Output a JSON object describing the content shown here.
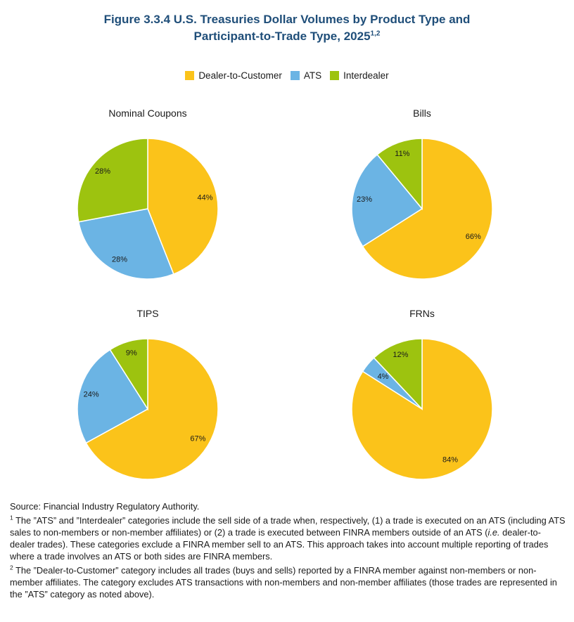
{
  "title": {
    "line1": "Figure 3.3.4 U.S. Treasuries Dollar Volumes by Product Type and",
    "line2": "Participant-to-Trade Type, 2025",
    "sup": "1,2"
  },
  "colors": {
    "Dealer-to-Customer": "#fbc31a",
    "ATS": "#6bb4e4",
    "Interdealer": "#9dc30f"
  },
  "legend": [
    "Dealer-to-Customer",
    "ATS",
    "Interdealer"
  ],
  "chart_data": [
    {
      "type": "pie",
      "title": "Nominal Coupons",
      "slices": [
        {
          "name": "Dealer-to-Customer",
          "value": 44,
          "label": "44%"
        },
        {
          "name": "ATS",
          "value": 28,
          "label": "28%"
        },
        {
          "name": "Interdealer",
          "value": 28,
          "label": "28%"
        }
      ]
    },
    {
      "type": "pie",
      "title": "Bills",
      "slices": [
        {
          "name": "Dealer-to-Customer",
          "value": 66,
          "label": "66%"
        },
        {
          "name": "ATS",
          "value": 23,
          "label": "23%"
        },
        {
          "name": "Interdealer",
          "value": 11,
          "label": "11%"
        }
      ]
    },
    {
      "type": "pie",
      "title": "TIPS",
      "slices": [
        {
          "name": "Dealer-to-Customer",
          "value": 67,
          "label": "67%"
        },
        {
          "name": "ATS",
          "value": 24,
          "label": "24%"
        },
        {
          "name": "Interdealer",
          "value": 9,
          "label": "9%"
        }
      ]
    },
    {
      "type": "pie",
      "title": "FRNs",
      "slices": [
        {
          "name": "Dealer-to-Customer",
          "value": 84,
          "label": "84%"
        },
        {
          "name": "ATS",
          "value": 4,
          "label": "4%"
        },
        {
          "name": "Interdealer",
          "value": 12,
          "label": "12%"
        }
      ]
    }
  ],
  "notes": {
    "source": "Source: Financial Industry Regulatory Authority.",
    "fn1_mark": "1",
    "fn1_a": "The ”ATS” and ”Interdealer” categories include the sell side of a trade when, respectively, (1) a trade is executed on an ATS (including ATS sales to non-members or non-member affiliates) or (2) a trade is executed between FINRA members outside of an ATS (",
    "fn1_ie": "i.e.",
    "fn1_b": " dealer-to-dealer trades). These categories exclude a FINRA member sell to an ATS. This approach takes into account multiple reporting of trades where a trade involves an ATS or both sides are FINRA members.",
    "fn2_mark": "2",
    "fn2": "The ”Dealer-to-Customer” category includes all trades (buys and sells) reported by a FINRA member against non-members or non-member affiliates. The category excludes ATS transactions with non-members and non-member affiliates (those trades are represented in the ”ATS” category as noted above)."
  }
}
